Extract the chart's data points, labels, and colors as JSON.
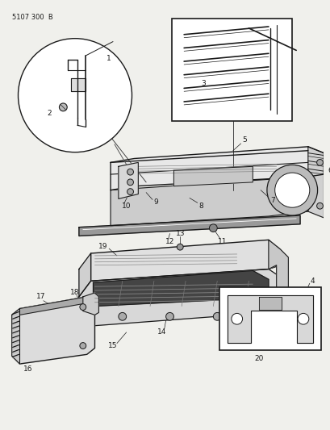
{
  "title": "5107 300  B",
  "bg_color": "#f0f0ec",
  "line_color": "#1a1a1a",
  "text_color": "#1a1a1a",
  "fig_w": 4.1,
  "fig_h": 5.33,
  "dpi": 100
}
